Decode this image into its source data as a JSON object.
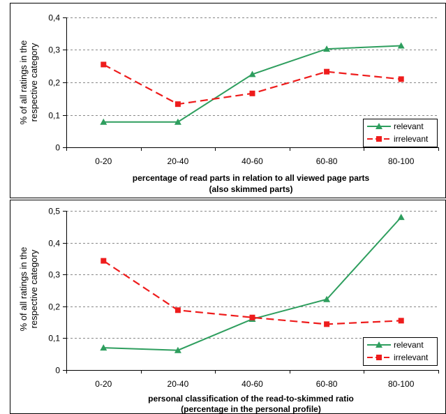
{
  "chart_data": [
    {
      "type": "line",
      "categories": [
        "0-20",
        "20-40",
        "40-60",
        "60-80",
        "80-100"
      ],
      "series": [
        {
          "name": "relevant",
          "values": [
            0.078,
            0.078,
            0.225,
            0.303,
            0.313
          ],
          "color": "#2e9e5e",
          "marker": "triangle",
          "dash": "solid"
        },
        {
          "name": "irrelevant",
          "values": [
            0.255,
            0.133,
            0.166,
            0.233,
            0.21
          ],
          "color": "#ee1c1c",
          "marker": "square",
          "dash": "dashed"
        }
      ],
      "ylim": [
        0,
        0.4
      ],
      "yticks": [
        "0",
        "0,1",
        "0,2",
        "0,3",
        "0,4"
      ],
      "ylabel_lines": [
        "% of all ratings in the",
        "respective category"
      ],
      "xlabel_lines": [
        "percentage of read parts in relation to all viewed page parts",
        "(also skimmed parts)"
      ],
      "grid": "horizontal-dashed",
      "legend": "bottom-right"
    },
    {
      "type": "line",
      "categories": [
        "0-20",
        "20-40",
        "40-60",
        "60-80",
        "80-100"
      ],
      "series": [
        {
          "name": "relevant",
          "values": [
            0.07,
            0.062,
            0.16,
            0.222,
            0.48
          ],
          "color": "#2e9e5e",
          "marker": "triangle",
          "dash": "solid"
        },
        {
          "name": "irrelevant",
          "values": [
            0.343,
            0.188,
            0.165,
            0.144,
            0.155
          ],
          "color": "#ee1c1c",
          "marker": "square",
          "dash": "dashed"
        }
      ],
      "ylim": [
        0,
        0.5
      ],
      "yticks": [
        "0",
        "0,1",
        "0,2",
        "0,3",
        "0,4",
        "0,5"
      ],
      "ylabel_lines": [
        "% of all ratings in the",
        "respective category"
      ],
      "xlabel_lines": [
        "personal classification  of the read-to-skimmed ratio",
        "(percentage in the personal profile)"
      ],
      "grid": "horizontal-dashed",
      "legend": "bottom-right"
    }
  ]
}
